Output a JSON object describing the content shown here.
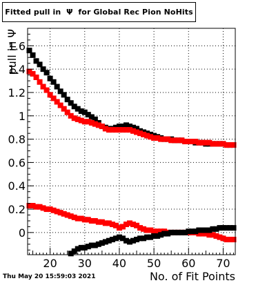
{
  "chart_data": {
    "type": "scatter",
    "title": "Fitted pull in  Ψ  for Global Rec Pion NoHits",
    "xlabel": "No. of Fit Points",
    "ylabel": "pull in Ψ",
    "xlim": [
      13.5,
      73.5
    ],
    "ylim": [
      -0.19,
      1.75
    ],
    "xticks": [
      20,
      30,
      40,
      50,
      60,
      70
    ],
    "yticks": [
      0,
      0.2,
      0.4,
      0.6,
      0.8,
      1,
      1.2,
      1.4,
      1.6
    ],
    "ytick_labels": [
      "0",
      "0.2",
      "0.4",
      "0.6",
      "0.8",
      "1",
      "1.2",
      "1.4",
      "1.6"
    ],
    "grid": true,
    "marker": "square",
    "series": [
      {
        "color": "#000000",
        "x": [
          14,
          15,
          16,
          17,
          18,
          19,
          20,
          21,
          22,
          23,
          24,
          25,
          26,
          27,
          28,
          29,
          30,
          31,
          32,
          33,
          34,
          35,
          36,
          37,
          38,
          39,
          40,
          41,
          42,
          43,
          44,
          45,
          46,
          47,
          48,
          49,
          50,
          51,
          52,
          53,
          54,
          55,
          56,
          57,
          58,
          59,
          60,
          61,
          62,
          63,
          64,
          65,
          66,
          67,
          68,
          69,
          70,
          71,
          72,
          73
        ],
        "y": [
          1.56,
          1.52,
          1.47,
          1.44,
          1.4,
          1.37,
          1.32,
          1.29,
          1.25,
          1.21,
          1.18,
          1.14,
          1.11,
          1.08,
          1.06,
          1.04,
          1.03,
          1.01,
          0.99,
          0.97,
          0.94,
          0.91,
          0.9,
          0.89,
          0.89,
          0.9,
          0.91,
          0.91,
          0.92,
          0.91,
          0.9,
          0.89,
          0.87,
          0.86,
          0.85,
          0.84,
          0.83,
          0.82,
          0.81,
          0.8,
          0.8,
          0.8,
          0.79,
          0.79,
          0.79,
          0.78,
          0.78,
          0.78,
          0.77,
          0.77,
          0.77,
          0.76,
          0.76,
          0.76,
          0.76,
          0.76,
          0.76,
          0.75,
          0.75,
          0.75
        ]
      },
      {
        "color": "#ff0000",
        "x": [
          14,
          15,
          16,
          17,
          18,
          19,
          20,
          21,
          22,
          23,
          24,
          25,
          26,
          27,
          28,
          29,
          30,
          31,
          32,
          33,
          34,
          35,
          36,
          37,
          38,
          39,
          40,
          41,
          42,
          43,
          44,
          45,
          46,
          47,
          48,
          49,
          50,
          51,
          52,
          53,
          54,
          55,
          56,
          57,
          58,
          59,
          60,
          61,
          62,
          63,
          64,
          65,
          66,
          67,
          68,
          69,
          70,
          71,
          72,
          73
        ],
        "y": [
          1.38,
          1.36,
          1.33,
          1.29,
          1.25,
          1.22,
          1.18,
          1.15,
          1.12,
          1.09,
          1.06,
          1.03,
          1.0,
          0.98,
          0.97,
          0.96,
          0.95,
          0.95,
          0.94,
          0.93,
          0.92,
          0.91,
          0.89,
          0.88,
          0.88,
          0.88,
          0.88,
          0.88,
          0.88,
          0.88,
          0.87,
          0.86,
          0.85,
          0.84,
          0.83,
          0.82,
          0.81,
          0.81,
          0.8,
          0.8,
          0.8,
          0.79,
          0.79,
          0.79,
          0.79,
          0.78,
          0.78,
          0.78,
          0.78,
          0.77,
          0.77,
          0.77,
          0.77,
          0.76,
          0.76,
          0.76,
          0.76,
          0.75,
          0.75,
          0.75
        ]
      },
      {
        "color": "#ff0000",
        "x": [
          14,
          15,
          16,
          17,
          18,
          19,
          20,
          21,
          22,
          23,
          24,
          25,
          26,
          27,
          28,
          29,
          30,
          31,
          32,
          33,
          34,
          35,
          36,
          37,
          38,
          39,
          40,
          41,
          42,
          43,
          44,
          45,
          46,
          47,
          48,
          49,
          50,
          51,
          52,
          53,
          54,
          55,
          56,
          57,
          58,
          59,
          60,
          61,
          62,
          63,
          64,
          65,
          66,
          67,
          68,
          69,
          70,
          71,
          72,
          73
        ],
        "y": [
          0.23,
          0.23,
          0.22,
          0.22,
          0.21,
          0.2,
          0.2,
          0.19,
          0.18,
          0.17,
          0.16,
          0.15,
          0.14,
          0.13,
          0.12,
          0.12,
          0.11,
          0.11,
          0.1,
          0.1,
          0.09,
          0.09,
          0.08,
          0.08,
          0.07,
          0.06,
          0.04,
          0.05,
          0.07,
          0.08,
          0.07,
          0.06,
          0.04,
          0.03,
          0.02,
          0.02,
          0.01,
          0.01,
          0.01,
          0.01,
          0.0,
          0.0,
          0.0,
          0.0,
          0.0,
          0.0,
          0.0,
          0.0,
          0.0,
          -0.01,
          -0.01,
          -0.01,
          -0.02,
          -0.02,
          -0.03,
          -0.04,
          -0.05,
          -0.06,
          -0.06,
          -0.06
        ]
      },
      {
        "color": "#000000",
        "x": [
          26,
          27,
          28,
          29,
          30,
          31,
          32,
          33,
          34,
          35,
          36,
          37,
          38,
          39,
          40,
          41,
          42,
          43,
          44,
          45,
          46,
          47,
          48,
          49,
          50,
          51,
          52,
          53,
          54,
          55,
          56,
          57,
          58,
          59,
          60,
          61,
          62,
          63,
          64,
          65,
          66,
          67,
          68,
          69,
          70,
          71,
          72,
          73
        ],
        "y": [
          -0.18,
          -0.16,
          -0.14,
          -0.13,
          -0.13,
          -0.12,
          -0.11,
          -0.11,
          -0.1,
          -0.09,
          -0.08,
          -0.07,
          -0.06,
          -0.05,
          -0.04,
          -0.05,
          -0.07,
          -0.08,
          -0.07,
          -0.06,
          -0.05,
          -0.05,
          -0.04,
          -0.04,
          -0.03,
          -0.03,
          -0.02,
          -0.01,
          -0.01,
          0.0,
          0.0,
          0.0,
          0.0,
          0.0,
          0.01,
          0.01,
          0.01,
          0.02,
          0.02,
          0.02,
          0.02,
          0.03,
          0.03,
          0.04,
          0.04,
          0.04,
          0.04,
          0.04
        ]
      }
    ]
  },
  "footer": {
    "datestamp": "Thu May 20 15:59:03 2021"
  }
}
